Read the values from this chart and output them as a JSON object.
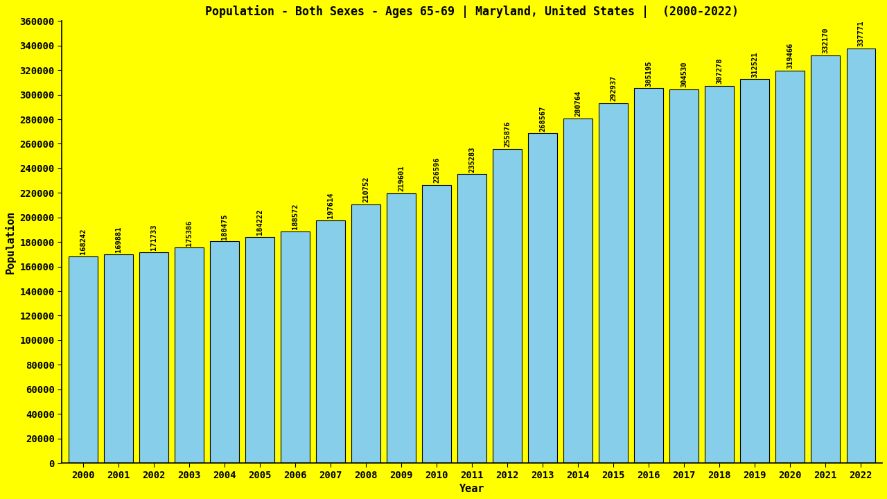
{
  "title": "Population - Both Sexes - Ages 65-69 | Maryland, United States |  (2000-2022)",
  "xlabel": "Year",
  "ylabel": "Population",
  "background_color": "#FFFF00",
  "bar_color": "#87CEEB",
  "bar_edge_color": "#000000",
  "years": [
    2000,
    2001,
    2002,
    2003,
    2004,
    2005,
    2006,
    2007,
    2008,
    2009,
    2010,
    2011,
    2012,
    2013,
    2014,
    2015,
    2016,
    2017,
    2018,
    2019,
    2020,
    2021,
    2022
  ],
  "values": [
    168242,
    169881,
    171733,
    175386,
    180475,
    184222,
    188572,
    197614,
    210752,
    219601,
    226596,
    235283,
    255876,
    268567,
    280764,
    292937,
    305195,
    304530,
    307278,
    312521,
    319466,
    332170,
    337771
  ],
  "ylim": [
    0,
    360000
  ],
  "yticks": [
    0,
    20000,
    40000,
    60000,
    80000,
    100000,
    120000,
    140000,
    160000,
    180000,
    200000,
    220000,
    240000,
    260000,
    280000,
    300000,
    320000,
    340000,
    360000
  ],
  "title_fontsize": 12,
  "axis_label_fontsize": 11,
  "tick_fontsize": 10,
  "value_label_fontsize": 7.5,
  "bar_width": 0.82
}
